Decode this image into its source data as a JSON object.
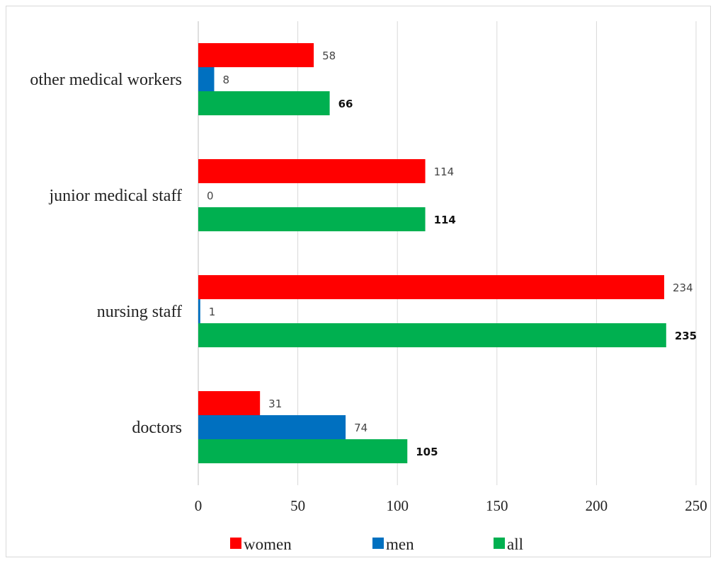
{
  "chart_data": {
    "type": "bar",
    "orientation": "horizontal",
    "categories": [
      "doctors",
      "nursing staff",
      "junior medical staff",
      "other medical workers"
    ],
    "series": [
      {
        "name": "women",
        "color": "#ff0000",
        "values": [
          31,
          234,
          114,
          58
        ]
      },
      {
        "name": "men",
        "color": "#0070c0",
        "values": [
          74,
          1,
          0,
          8
        ]
      },
      {
        "name": "all",
        "color": "#00b050",
        "values": [
          105,
          235,
          114,
          66
        ]
      }
    ],
    "xlim": [
      0,
      250
    ],
    "xticks": [
      0,
      50,
      100,
      150,
      200,
      250
    ],
    "grid": true,
    "legend": "bottom",
    "data_labels": true,
    "bold_labels_series": "all"
  }
}
